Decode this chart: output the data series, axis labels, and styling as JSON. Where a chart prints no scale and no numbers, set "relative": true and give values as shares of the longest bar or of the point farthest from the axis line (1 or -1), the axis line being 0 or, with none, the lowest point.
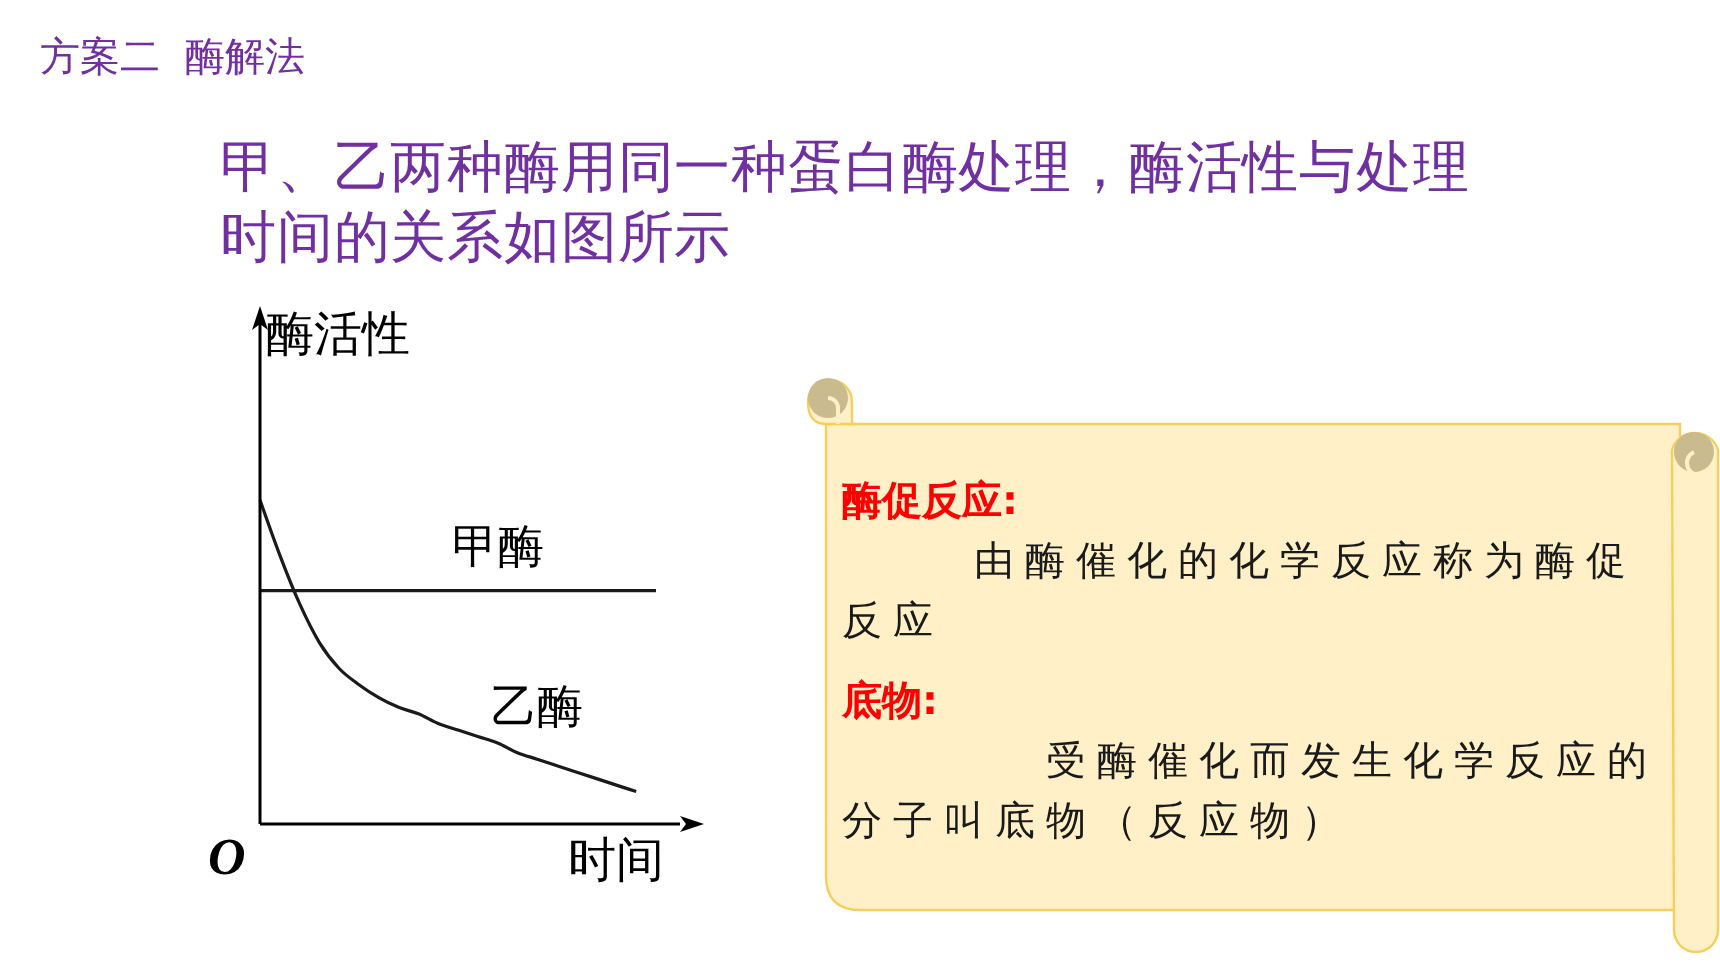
{
  "chart_data": [
    {
      "type": "line",
      "title": "方案二  酶解法",
      "subtitle": "甲、乙两种酶用同一种蛋白酶处理，酶活性与处理时间的关系如图所示",
      "xlabel": "时间",
      "ylabel": "酶活性",
      "annotations": [
        "O"
      ],
      "relative": true,
      "categories": [
        null,
        null,
        null,
        null,
        null,
        null,
        null,
        null,
        null,
        null,
        null,
        null,
        null,
        null,
        null,
        null,
        null,
        null,
        null,
        null,
        null
      ],
      "series": [
        {
          "name": "甲酶",
          "color": "#1a1a1a",
          "values": [
            0.72,
            0.72,
            0.72,
            0.72,
            0.72,
            0.72,
            0.72,
            0.72,
            0.72,
            0.72,
            0.72,
            0.72,
            0.72,
            0.72,
            0.72,
            0.72,
            0.72,
            0.72,
            0.72,
            0.72,
            0.72
          ]
        },
        {
          "name": "乙酶",
          "color": "#1a1a1a",
          "values": [
            1.0,
            0.83,
            0.68,
            0.56,
            0.48,
            0.43,
            0.39,
            0.36,
            0.34,
            0.31,
            0.29,
            0.27,
            0.25,
            0.22,
            0.2,
            0.18,
            0.16,
            0.14,
            0.12,
            0.1,
            null
          ]
        }
      ]
    },
    {
      "type": "other",
      "annotations": [
        "酶促反应:",
        "由酶催化的化学反应称为酶促反应",
        "底物:",
        "受酶催化而发生化学反应的分子叫底物（反应物）"
      ]
    }
  ]
}
